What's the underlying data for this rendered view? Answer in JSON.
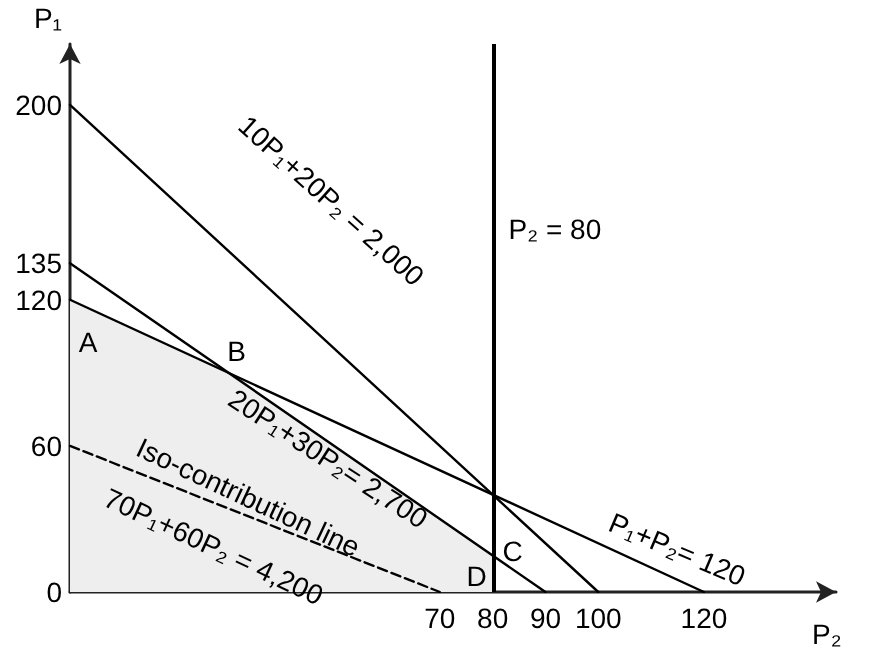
{
  "chart_data": {
    "type": "line",
    "xlabel": "P₂",
    "ylabel": "P₁",
    "xlim": [
      0,
      145
    ],
    "ylim": [
      0,
      225
    ],
    "xticks": [
      70,
      80,
      90,
      100,
      120
    ],
    "yticks": [
      0,
      60,
      120,
      135,
      200
    ],
    "grid": false,
    "marker": "none",
    "series": [
      {
        "type": "area",
        "color": "#eeeeee",
        "x": [
          0,
          30,
          80
        ],
        "values": [
          120,
          90,
          15
        ]
      },
      {
        "color": "#000000",
        "x": [
          0,
          100
        ],
        "values": [
          200,
          0
        ]
      },
      {
        "color": "#000000",
        "x": [
          0,
          90
        ],
        "values": [
          135,
          0
        ]
      },
      {
        "color": "#000000",
        "x": [
          0,
          120
        ],
        "values": [
          120,
          0
        ]
      },
      {
        "color": "#000000",
        "x": [
          0,
          70
        ],
        "values": [
          60,
          0
        ],
        "line_style": "dashed"
      }
    ],
    "ref_lines": [
      {
        "axis": "x",
        "value": 80,
        "label": "P₂ = 80",
        "color": "#000000"
      }
    ],
    "annotations": [
      "10P₁+20P₂ = 2,000",
      "20P₁+30P₂= 2,700",
      "Iso-contribution line",
      "70P₁+60P₂ = 4,200",
      "P₁+P₂= 120",
      {
        "text": "A",
        "x": 0,
        "y": 120
      },
      {
        "text": "B",
        "x": 30,
        "y": 90
      },
      {
        "text": "C",
        "x": 80,
        "y": 15
      },
      {
        "text": "D",
        "x": 80,
        "y": 0
      }
    ]
  }
}
